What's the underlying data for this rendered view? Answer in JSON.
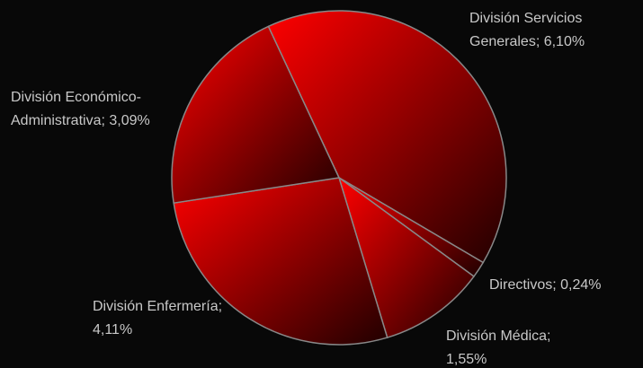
{
  "chart_data": {
    "type": "pie",
    "labels": [
      [
        "División Servicios",
        "Generales; 6,10%"
      ],
      [
        "Directivos; 0,24%"
      ],
      [
        "División Médica;",
        "1,55%"
      ],
      [
        "División Enfermería;",
        "4,11%"
      ],
      [
        "División Económico-",
        "Administrativa; 3,09%"
      ]
    ],
    "values": [
      6.1,
      0.24,
      1.55,
      4.11,
      3.09
    ],
    "color": "#ff0000"
  }
}
